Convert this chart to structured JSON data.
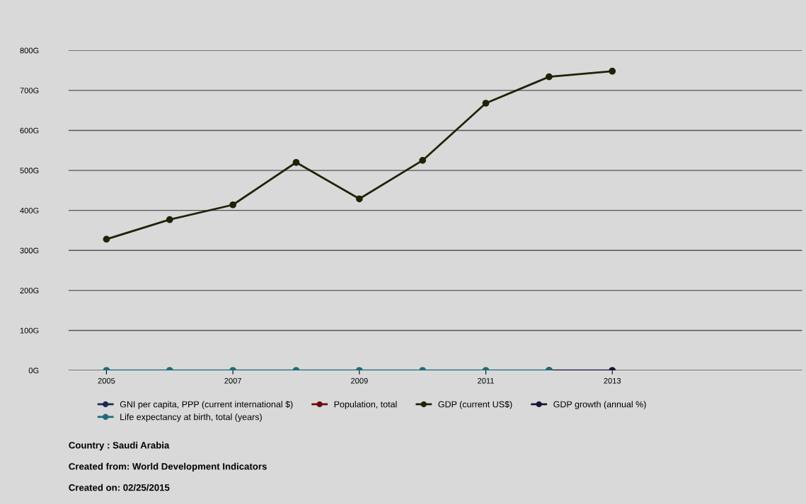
{
  "chart_data": {
    "type": "line",
    "x": [
      2005,
      2006,
      2007,
      2008,
      2009,
      2010,
      2011,
      2012,
      2013
    ],
    "series": [
      {
        "name": "GNI per capita, PPP (current international $)",
        "color": "#1b2a55",
        "values": [
          null,
          null,
          null,
          null,
          null,
          null,
          null,
          null,
          null
        ]
      },
      {
        "name": "Population, total",
        "color": "#6e0a0a",
        "values": [
          null,
          null,
          null,
          null,
          null,
          null,
          null,
          null,
          null
        ]
      },
      {
        "name": "GDP (current US$)",
        "color": "#1c2408",
        "values": [
          328,
          377,
          414,
          520,
          429,
          525,
          668,
          734,
          748
        ]
      },
      {
        "name": "GDP growth (annual %)",
        "color": "#1a1438",
        "values": [
          null,
          null,
          null,
          null,
          null,
          null,
          null,
          0,
          0
        ]
      },
      {
        "name": "Life expectancy at birth, total (years)",
        "color": "#1f6b78",
        "values": [
          0,
          0,
          0,
          0,
          0,
          0,
          0,
          0,
          null
        ]
      }
    ],
    "xlim": [
      2004.4,
      2016.0
    ],
    "xticks": [
      2005,
      2007,
      2009,
      2011,
      2013
    ],
    "ylim": [
      0,
      800
    ],
    "yticks": [
      {
        "value": 0,
        "label": "0G"
      },
      {
        "value": 100,
        "label": "100G"
      },
      {
        "value": 200,
        "label": "200G"
      },
      {
        "value": 300,
        "label": "300G"
      },
      {
        "value": 400,
        "label": "400G"
      },
      {
        "value": 500,
        "label": "500G"
      },
      {
        "value": 600,
        "label": "600G"
      },
      {
        "value": 700,
        "label": "700G"
      },
      {
        "value": 800,
        "label": "800G"
      }
    ],
    "grid": "y",
    "legend": "bottom",
    "marker": "circle",
    "line_style": "solid",
    "annotations": [
      "Country : Saudi Arabia",
      "Created from: World Development Indicators",
      "Created on: 02/25/2015"
    ]
  }
}
